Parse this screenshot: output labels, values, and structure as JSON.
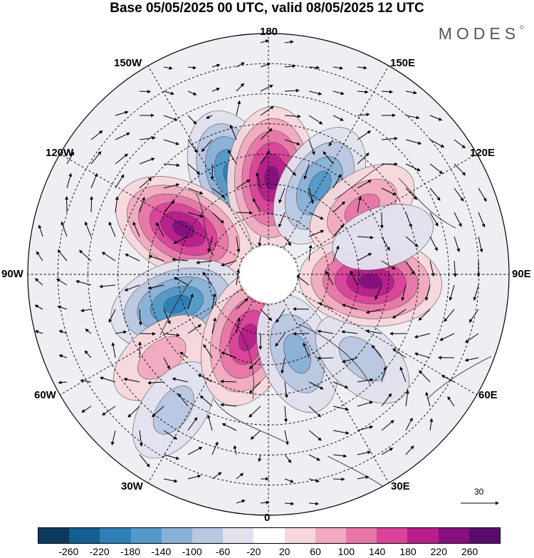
{
  "title": "Base 05/05/2025 00 UTC, valid 08/05/2025 12 UTC",
  "brand": "MODES",
  "brand_mark": "©",
  "longitude_labels": {
    "top": "180",
    "bottom": "0",
    "left": "90W",
    "right": "90E",
    "upper_left_1": "150W",
    "upper_left_2": "120W",
    "lower_left_1": "60W",
    "lower_left_2": "30W",
    "upper_right_1": "150E",
    "upper_right_2": "120E",
    "lower_right_1": "60E",
    "lower_right_2": "30E"
  },
  "reference_vector_label": "30",
  "colorbar": {
    "ticks": [
      "-260",
      "-220",
      "-180",
      "-140",
      "-100",
      "-60",
      "-20",
      "20",
      "60",
      "100",
      "140",
      "180",
      "220",
      "260"
    ],
    "colors": [
      "#0b3a5e",
      "#135f8f",
      "#2e7fb8",
      "#5499c9",
      "#89b1d7",
      "#b9c7e2",
      "#e2e2ef",
      "#ffffff",
      "#f7d7dc",
      "#f1aac0",
      "#e777a8",
      "#d9449a",
      "#b71e8c",
      "#85107f",
      "#5a0a6c"
    ]
  },
  "anomaly_centers": [
    {
      "name": "low-north-pacific-west",
      "lon": -160,
      "lat": 55,
      "value": -200
    },
    {
      "name": "high-dateline",
      "lon": 178,
      "lat": 58,
      "value": 240
    },
    {
      "name": "low-bering-east",
      "lon": 150,
      "lat": 56,
      "value": -170
    },
    {
      "name": "high-east-siberia",
      "lon": 125,
      "lat": 52,
      "value": 130
    },
    {
      "name": "high-western-canada",
      "lon": -118,
      "lat": 58,
      "value": 250
    },
    {
      "name": "low-hudson-bay",
      "lon": -72,
      "lat": 58,
      "value": -210
    },
    {
      "name": "high-north-atlantic",
      "lon": -52,
      "lat": 45,
      "value": 100
    },
    {
      "name": "low-mid-atlantic",
      "lon": -35,
      "lat": 35,
      "value": -90
    },
    {
      "name": "high-greenland-sea",
      "lon": -18,
      "lat": 68,
      "value": 230
    },
    {
      "name": "low-scandinavia",
      "lon": 20,
      "lat": 62,
      "value": -150
    },
    {
      "name": "low-caspian",
      "lon": 48,
      "lat": 48,
      "value": -100
    },
    {
      "name": "high-central-siberia",
      "lon": 86,
      "lat": 56,
      "value": 240
    },
    {
      "name": "low-mongolia",
      "lon": 108,
      "lat": 50,
      "value": -70
    }
  ]
}
